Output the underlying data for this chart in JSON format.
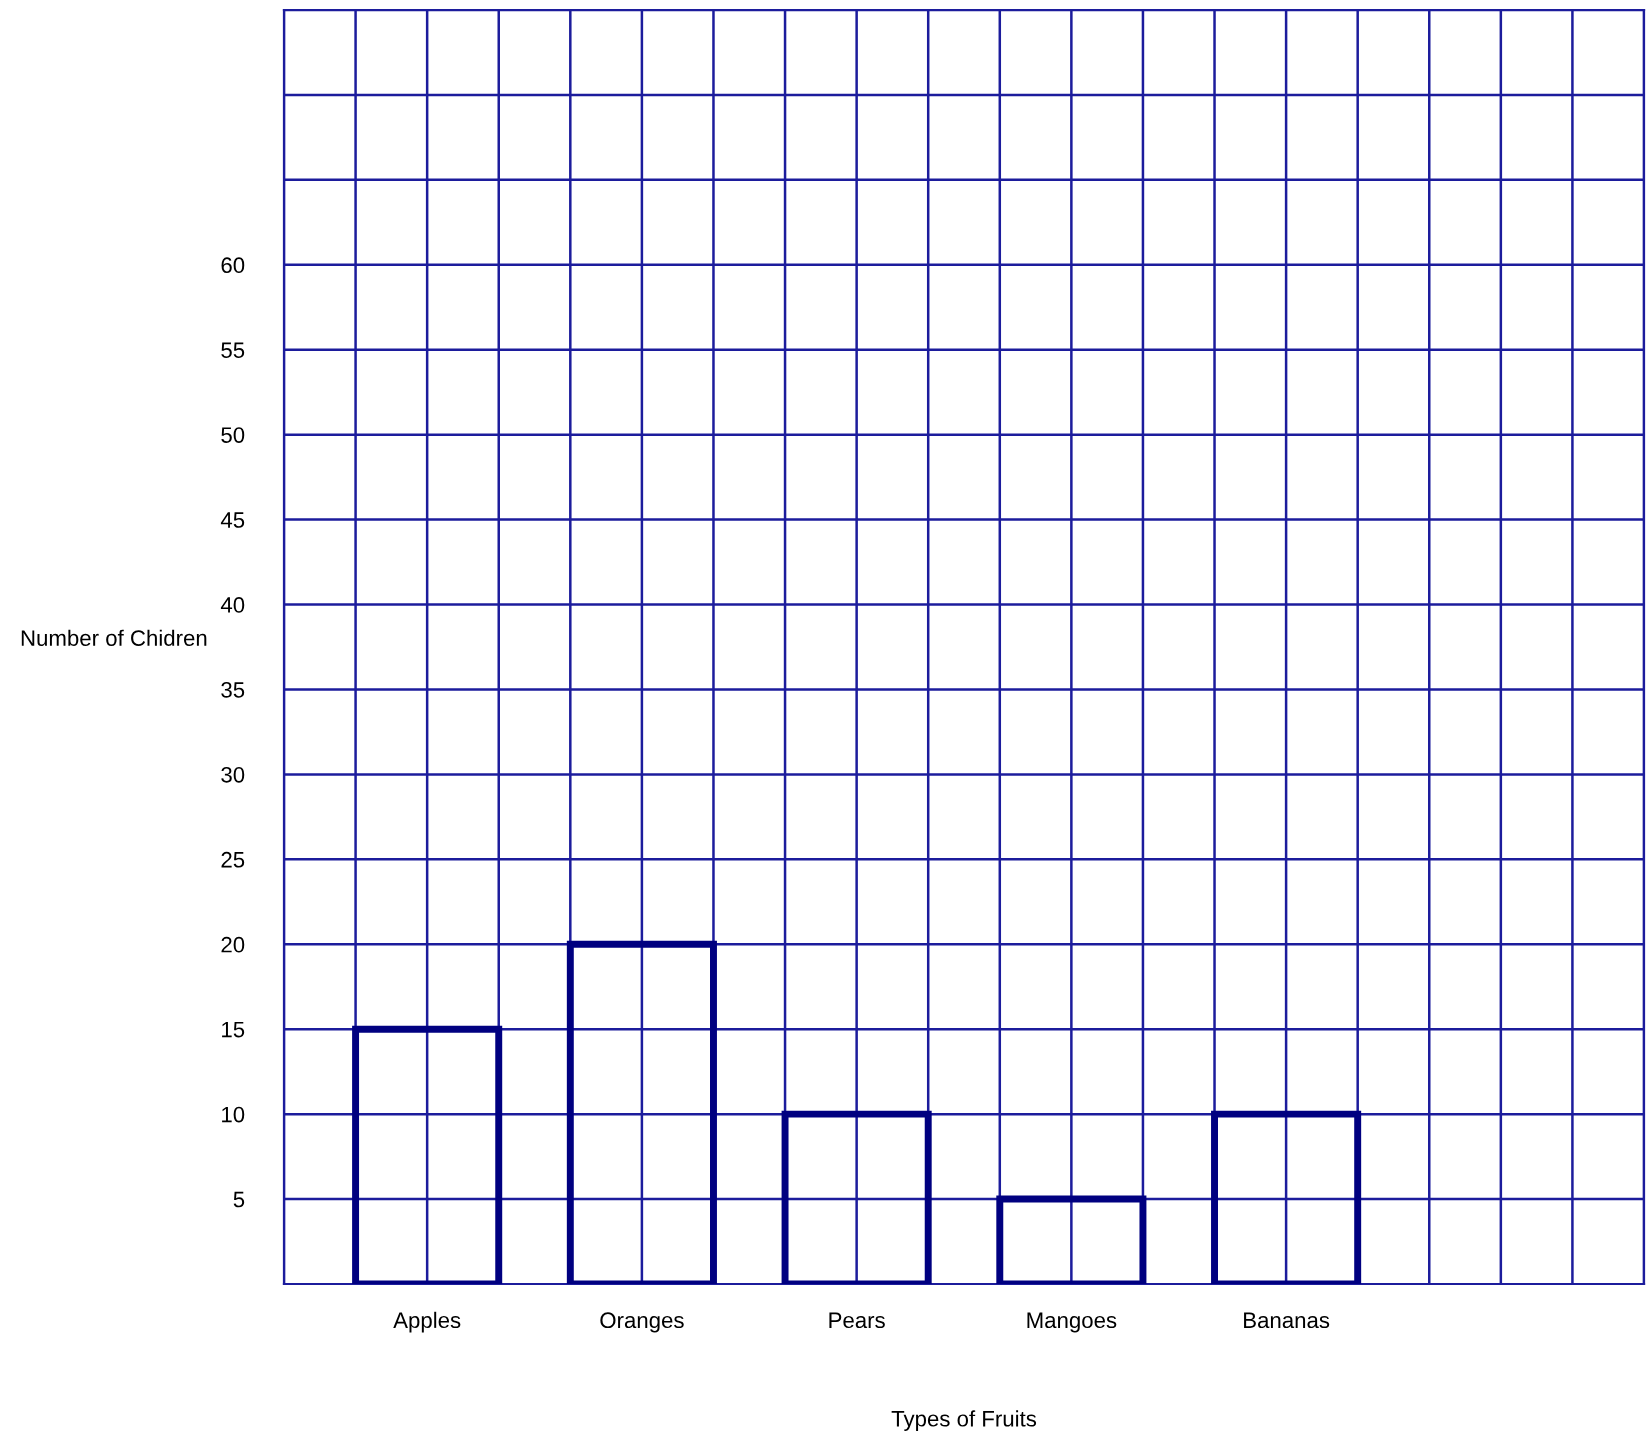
{
  "chart_data": {
    "type": "bar",
    "xlabel": "Types of Fruits",
    "ylabel": "Number of Chidren",
    "categories": [
      "Apples",
      "Oranges",
      "Pears",
      "Mangoes",
      "Bananas"
    ],
    "values": [
      15,
      20,
      10,
      5,
      10
    ],
    "color": "#000080",
    "ylim": [
      0,
      75
    ],
    "yticks": [
      5,
      10,
      15,
      20,
      25,
      30,
      35,
      40,
      45,
      50,
      55,
      60,
      {
        "value": 65,
        "label": null
      },
      {
        "value": 70,
        "label": null
      },
      {
        "value": 75,
        "label": null
      }
    ],
    "grid": true,
    "legend": false
  }
}
